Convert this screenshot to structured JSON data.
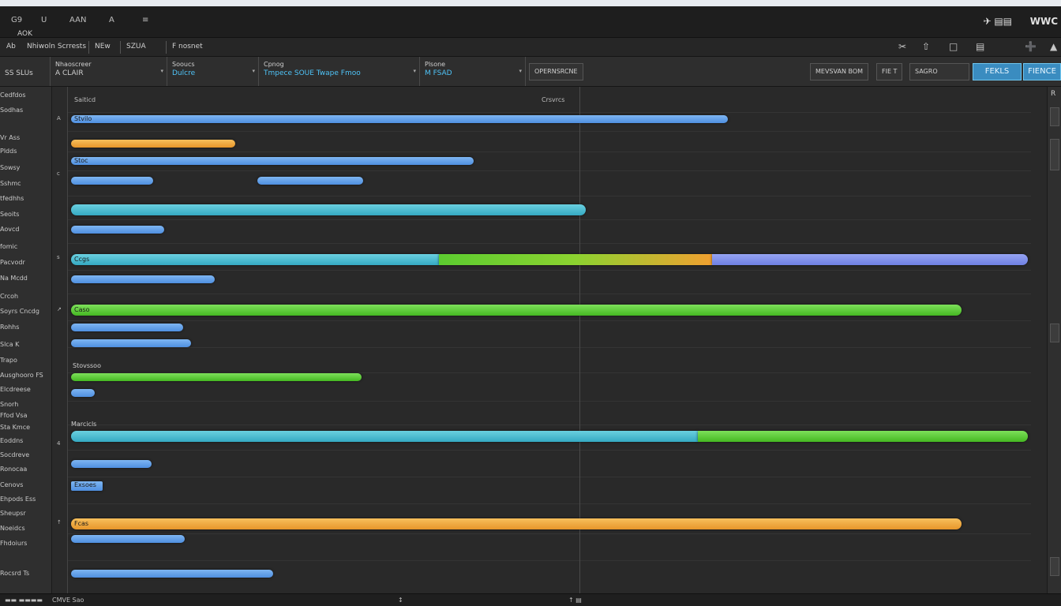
{
  "menubar": {
    "items": [
      "G9",
      "U",
      "AAN",
      "A",
      "≡"
    ],
    "subtitle": "AOK",
    "brand": "WWC",
    "brand_icon": "✈ ▤▤"
  },
  "toolbar": {
    "items": [
      "Ab",
      "Nhiwoln Scrrests",
      "NEw",
      "SZUA",
      "F nosnet"
    ],
    "icons": [
      "✂",
      "⇧",
      "□",
      "▤",
      "➕",
      "▲"
    ]
  },
  "filterbar": {
    "left_label": "SS SLUs",
    "sections": [
      {
        "line1": "Nhaoscreer",
        "line2": "A CLAIR"
      },
      {
        "line1": "Sooucs",
        "line2": "Dulcre"
      },
      {
        "line1": "Cpnog",
        "line2": "Tmpece SOUE  Twape  Fmoo"
      },
      {
        "line1": "Plsone",
        "line2": "M FSAD"
      }
    ],
    "operation_button": "OPERNSRCNE",
    "right_buttons": [
      "MEVSVAN BOM",
      "FIE T",
      "SAGRO"
    ],
    "accent_buttons": [
      "FEKLS",
      "FIENCE"
    ]
  },
  "sidebar": {
    "rows": [
      "Cedfdos",
      "Sodhas",
      "Vr Ass",
      "Pldds",
      "Sowsy",
      "Sshmc",
      "tfedhhs",
      "Seoits",
      "Aovcd",
      "fomic",
      "Pacvodr",
      "Na Mcdd",
      "Crcoh",
      "Soyrs Cncdg",
      "Rohhs",
      "Slca K",
      "Trapo",
      "Ausghooro FS",
      "Elcdreese",
      "Snorh",
      "Ffod Vsa",
      "Sta Kmce",
      "Eoddns",
      "Socdreve",
      "Ronocaa",
      "Cenovs",
      "Ehpods Ess",
      "Sheupsr",
      "Noeidcs",
      "Fhdoiurs",
      "Rocsrd Ts"
    ],
    "gutter_marks": [
      "A",
      "c",
      "s",
      "↗",
      "4",
      "↑"
    ]
  },
  "timeline": {
    "column_title": "Saiticd",
    "marker_title": "Crsvrcs",
    "bar_labels": {
      "b1": "Stvilo",
      "b3": "Stoc",
      "b9": "Ccgs",
      "b10": "Caso",
      "b15": "Exsoes",
      "b18": "Fcas"
    },
    "free_labels": [
      "Stovssoo",
      "Marcicls"
    ]
  },
  "statusbar": {
    "left": "▬▬ ▬▬▬▬",
    "mid": "CMVE Sao",
    "mark1": "↕",
    "mark2": "↑ ▤"
  },
  "colors": {
    "blue": "#5b9be8",
    "orange": "#f0a030",
    "teal": "#3ab6c8",
    "green": "#5ccc30",
    "purple": "#7a8ce8"
  }
}
